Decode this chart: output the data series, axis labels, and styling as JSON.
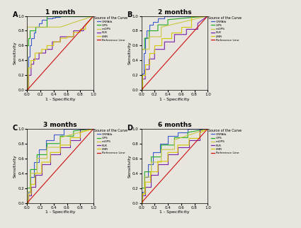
{
  "panels": [
    {
      "label": "A",
      "title": "1 month"
    },
    {
      "label": "B",
      "title": "2 months"
    },
    {
      "label": "C",
      "title": "3 months"
    },
    {
      "label": "D",
      "title": "6 months"
    }
  ],
  "legend_title": "Source of the Curve",
  "legend_entries": [
    "CRPAlb",
    "GPS",
    "mGPS",
    "PLR",
    "LMR",
    "Reference Line"
  ],
  "colors": {
    "CRPAlb": "#3a5fcd",
    "GPS": "#22aa22",
    "mGPS": "#c8c840",
    "PLR": "#7722aa",
    "LMR": "#d4c800",
    "Reference Line": "#cc1111"
  },
  "xlabel": "1 - Specificity",
  "ylabel": "Sensitivity",
  "xlim": [
    0.0,
    1.0
  ],
  "ylim": [
    0.0,
    1.0
  ],
  "xticks": [
    0.0,
    0.2,
    0.4,
    0.6,
    0.8,
    1.0
  ],
  "yticks": [
    0.0,
    0.2,
    0.4,
    0.6,
    0.8,
    1.0
  ],
  "bg_color": "#e8e4de",
  "panel_roc": {
    "1month": {
      "CRPAlb": {
        "x": [
          0,
          0.02,
          0.02,
          0.04,
          0.04,
          0.06,
          0.06,
          0.1,
          0.1,
          0.12,
          0.12,
          0.18,
          0.18,
          0.22,
          0.22,
          0.3,
          0.3,
          0.38,
          0.38,
          0.42,
          0.42,
          0.5,
          0.5,
          1.0
        ],
        "y": [
          0,
          0,
          0.45,
          0.45,
          0.6,
          0.6,
          0.7,
          0.7,
          0.78,
          0.78,
          0.85,
          0.85,
          0.9,
          0.9,
          0.95,
          0.95,
          0.97,
          0.97,
          0.98,
          0.98,
          0.99,
          0.99,
          1.0,
          1.0
        ]
      },
      "GPS": {
        "x": [
          0,
          0,
          0.02,
          0.02,
          0.04,
          0.04,
          0.12,
          0.12,
          0.3,
          0.3,
          1.0
        ],
        "y": [
          0,
          0.6,
          0.6,
          0.7,
          0.7,
          0.8,
          0.8,
          0.85,
          0.85,
          1.0,
          1.0
        ]
      },
      "mGPS": {
        "x": [
          0,
          0.0,
          0.5,
          1.0
        ],
        "y": [
          0,
          0.85,
          0.85,
          1.0
        ]
      },
      "PLR": {
        "x": [
          0,
          0.02,
          0.02,
          0.06,
          0.06,
          0.1,
          0.1,
          0.18,
          0.18,
          0.28,
          0.28,
          0.38,
          0.38,
          0.5,
          0.5,
          0.7,
          0.7,
          0.85,
          0.85,
          1.0
        ],
        "y": [
          0,
          0,
          0.2,
          0.2,
          0.35,
          0.35,
          0.42,
          0.42,
          0.5,
          0.5,
          0.55,
          0.55,
          0.65,
          0.65,
          0.72,
          0.72,
          0.8,
          0.8,
          0.85,
          1.0
        ]
      },
      "LMR": {
        "x": [
          0,
          0.02,
          0.02,
          0.06,
          0.06,
          0.12,
          0.12,
          0.22,
          0.22,
          0.3,
          0.3,
          0.4,
          0.4,
          0.5,
          0.5,
          0.6,
          0.6,
          0.7,
          0.7,
          0.8,
          0.8,
          0.88,
          0.88,
          1.0
        ],
        "y": [
          0,
          0,
          0.3,
          0.3,
          0.4,
          0.4,
          0.5,
          0.5,
          0.55,
          0.55,
          0.6,
          0.6,
          0.65,
          0.65,
          0.7,
          0.7,
          0.72,
          0.72,
          0.78,
          0.78,
          0.82,
          0.82,
          0.87,
          1.0
        ]
      }
    },
    "2months": {
      "CRPAlb": {
        "x": [
          0,
          0.02,
          0.02,
          0.04,
          0.04,
          0.06,
          0.06,
          0.08,
          0.08,
          0.12,
          0.12,
          0.18,
          0.18,
          0.25,
          0.25,
          0.35,
          0.35,
          1.0
        ],
        "y": [
          0,
          0,
          0.22,
          0.22,
          0.5,
          0.5,
          0.7,
          0.7,
          0.8,
          0.8,
          0.88,
          0.88,
          0.92,
          0.92,
          0.97,
          0.97,
          1.0,
          1.0
        ]
      },
      "GPS": {
        "x": [
          0,
          0,
          0.05,
          0.05,
          0.12,
          0.12,
          0.25,
          0.25,
          0.4,
          0.4,
          1.0
        ],
        "y": [
          0,
          0.55,
          0.55,
          0.7,
          0.7,
          0.8,
          0.8,
          0.88,
          0.88,
          0.95,
          1.0
        ]
      },
      "mGPS": {
        "x": [
          0,
          0,
          0.12,
          0.12,
          0.3,
          0.3,
          1.0
        ],
        "y": [
          0,
          0.55,
          0.55,
          0.72,
          0.72,
          0.85,
          1.0
        ]
      },
      "PLR": {
        "x": [
          0,
          0.02,
          0.02,
          0.06,
          0.06,
          0.12,
          0.12,
          0.2,
          0.2,
          0.35,
          0.35,
          0.5,
          0.5,
          0.68,
          0.68,
          0.85,
          0.85,
          1.0
        ],
        "y": [
          0,
          0,
          0.15,
          0.15,
          0.28,
          0.28,
          0.42,
          0.42,
          0.55,
          0.55,
          0.65,
          0.65,
          0.75,
          0.75,
          0.82,
          0.82,
          0.9,
          1.0
        ]
      },
      "LMR": {
        "x": [
          0,
          0.02,
          0.02,
          0.06,
          0.06,
          0.12,
          0.12,
          0.2,
          0.2,
          0.3,
          0.3,
          0.45,
          0.45,
          0.6,
          0.6,
          0.75,
          0.75,
          1.0
        ],
        "y": [
          0,
          0,
          0.2,
          0.2,
          0.35,
          0.35,
          0.5,
          0.5,
          0.6,
          0.6,
          0.7,
          0.7,
          0.78,
          0.78,
          0.85,
          0.85,
          1.0,
          1.0
        ]
      }
    },
    "3months": {
      "CRPAlb": {
        "x": [
          0,
          0.02,
          0.02,
          0.05,
          0.05,
          0.1,
          0.1,
          0.18,
          0.18,
          0.28,
          0.28,
          0.4,
          0.4,
          0.55,
          0.55,
          1.0
        ],
        "y": [
          0,
          0,
          0.15,
          0.15,
          0.35,
          0.35,
          0.55,
          0.55,
          0.72,
          0.72,
          0.85,
          0.85,
          0.92,
          0.92,
          1.0,
          1.0
        ]
      },
      "GPS": {
        "x": [
          0,
          0,
          0.05,
          0.05,
          0.15,
          0.15,
          0.3,
          0.3,
          0.5,
          0.5,
          0.7,
          0.7,
          1.0
        ],
        "y": [
          0,
          0.2,
          0.2,
          0.45,
          0.45,
          0.65,
          0.65,
          0.8,
          0.8,
          0.9,
          0.9,
          0.97,
          1.0
        ]
      },
      "mGPS": {
        "x": [
          0,
          0,
          0.05,
          0.05,
          0.15,
          0.15,
          0.3,
          0.3,
          0.5,
          0.5,
          1.0
        ],
        "y": [
          0,
          0.15,
          0.15,
          0.4,
          0.4,
          0.6,
          0.6,
          0.75,
          0.75,
          0.88,
          1.0
        ]
      },
      "PLR": {
        "x": [
          0,
          0.02,
          0.02,
          0.06,
          0.06,
          0.12,
          0.12,
          0.22,
          0.22,
          0.35,
          0.35,
          0.5,
          0.5,
          0.65,
          0.65,
          0.8,
          0.8,
          1.0
        ],
        "y": [
          0,
          0,
          0.1,
          0.1,
          0.22,
          0.22,
          0.38,
          0.38,
          0.52,
          0.52,
          0.65,
          0.65,
          0.75,
          0.75,
          0.85,
          0.85,
          1.0,
          1.0
        ]
      },
      "LMR": {
        "x": [
          0,
          0.02,
          0.02,
          0.06,
          0.06,
          0.12,
          0.12,
          0.22,
          0.22,
          0.35,
          0.35,
          0.5,
          0.5,
          0.65,
          0.65,
          0.8,
          0.8,
          1.0
        ],
        "y": [
          0,
          0,
          0.12,
          0.12,
          0.25,
          0.25,
          0.4,
          0.4,
          0.55,
          0.55,
          0.68,
          0.68,
          0.78,
          0.78,
          0.88,
          0.88,
          0.95,
          1.0
        ]
      }
    },
    "6months": {
      "CRPAlb": {
        "x": [
          0,
          0.02,
          0.02,
          0.05,
          0.05,
          0.1,
          0.1,
          0.18,
          0.18,
          0.28,
          0.28,
          0.4,
          0.4,
          0.55,
          0.55,
          0.7,
          0.7,
          1.0
        ],
        "y": [
          0,
          0,
          0.15,
          0.15,
          0.35,
          0.35,
          0.52,
          0.52,
          0.68,
          0.68,
          0.8,
          0.8,
          0.9,
          0.9,
          0.95,
          0.95,
          1.0,
          1.0
        ]
      },
      "GPS": {
        "x": [
          0,
          0,
          0.05,
          0.05,
          0.15,
          0.15,
          0.3,
          0.3,
          0.5,
          0.5,
          0.7,
          0.7,
          1.0
        ],
        "y": [
          0,
          0.2,
          0.2,
          0.42,
          0.42,
          0.62,
          0.62,
          0.78,
          0.78,
          0.88,
          0.88,
          0.95,
          1.0
        ]
      },
      "mGPS": {
        "x": [
          0,
          0,
          0.05,
          0.05,
          0.15,
          0.15,
          0.3,
          0.3,
          0.5,
          0.5,
          1.0
        ],
        "y": [
          0,
          0.12,
          0.12,
          0.35,
          0.35,
          0.55,
          0.55,
          0.72,
          0.72,
          0.85,
          1.0
        ]
      },
      "PLR": {
        "x": [
          0,
          0.02,
          0.02,
          0.06,
          0.06,
          0.14,
          0.14,
          0.25,
          0.25,
          0.4,
          0.4,
          0.55,
          0.55,
          0.72,
          0.72,
          0.88,
          0.88,
          1.0
        ],
        "y": [
          0,
          0,
          0.1,
          0.1,
          0.22,
          0.22,
          0.38,
          0.38,
          0.52,
          0.52,
          0.65,
          0.65,
          0.75,
          0.75,
          0.85,
          0.85,
          1.0,
          1.0
        ]
      },
      "LMR": {
        "x": [
          0,
          0.02,
          0.02,
          0.06,
          0.06,
          0.14,
          0.14,
          0.25,
          0.25,
          0.4,
          0.4,
          0.55,
          0.55,
          0.72,
          0.72,
          0.88,
          0.88,
          1.0
        ],
        "y": [
          0,
          0,
          0.12,
          0.12,
          0.28,
          0.28,
          0.42,
          0.42,
          0.56,
          0.56,
          0.68,
          0.68,
          0.78,
          0.78,
          0.87,
          0.87,
          0.94,
          1.0
        ]
      }
    }
  }
}
